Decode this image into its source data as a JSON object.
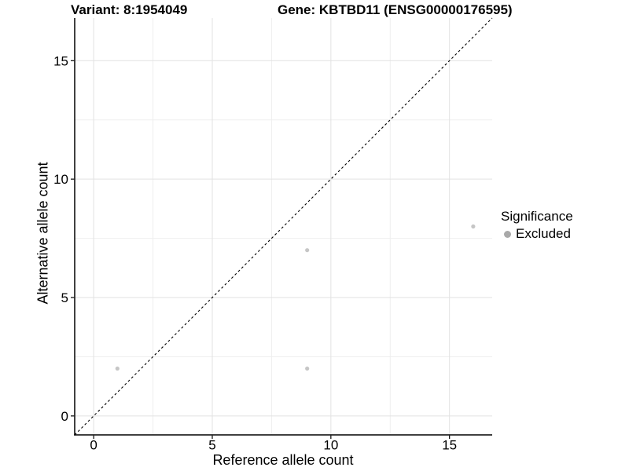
{
  "chart_data": {
    "type": "scatter",
    "title_left": "Variant: 8:1954049",
    "title_right": "Gene: KBTBD11 (ENSG00000176595)",
    "xlabel": "Reference allele count",
    "ylabel": "Alternative allele count",
    "xlim": [
      -0.8,
      16.8
    ],
    "ylim": [
      -0.8,
      16.8
    ],
    "x_ticks": [
      0,
      5,
      10,
      15
    ],
    "y_ticks": [
      0,
      5,
      10,
      15
    ],
    "minor_gridlines": [
      2.5,
      7.5,
      12.5
    ],
    "grid": "major and minor horizontal+vertical gridlines, light gray, white background",
    "identity_line": {
      "style": "dashed",
      "color": "#000000",
      "from": [
        -0.8,
        -0.8
      ],
      "to": [
        16.8,
        16.8
      ]
    },
    "series": [
      {
        "name": "Excluded",
        "color": "#c6c6c6",
        "points": [
          [
            1,
            2
          ],
          [
            9,
            2
          ],
          [
            9,
            7
          ],
          [
            16,
            8
          ]
        ]
      }
    ],
    "legend": {
      "title": "Significance",
      "position": "right",
      "items": [
        {
          "label": "Excluded",
          "color": "#a9a9a9"
        }
      ]
    },
    "colors": {
      "axis_line": "#000000",
      "major_grid": "#e2e2e2",
      "minor_grid": "#efefef",
      "tick_text": "#000000"
    }
  }
}
